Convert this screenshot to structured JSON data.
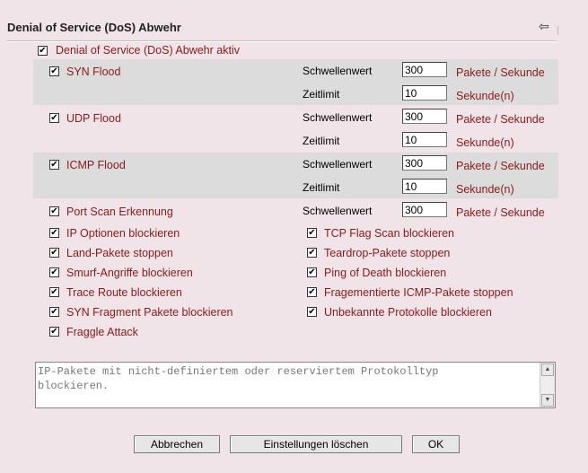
{
  "title": "Denial of Service (DoS) Abwehr",
  "dos_active": {
    "label": "Denial of Service (DoS) Abwehr aktiv",
    "checked": true
  },
  "syn_flood": {
    "label": "SYN Flood",
    "checked": true,
    "threshold_label": "Schwellenwert",
    "threshold": "300",
    "threshold_unit": "Pakete / Sekunde",
    "timeout_label": "Zeitlimit",
    "timeout": "10",
    "timeout_unit": "Sekunde(n)"
  },
  "udp_flood": {
    "label": "UDP Flood",
    "checked": true,
    "threshold_label": "Schwellenwert",
    "threshold": "300",
    "threshold_unit": "Pakete / Sekunde",
    "timeout_label": "Zeitlimit",
    "timeout": "10",
    "timeout_unit": "Sekunde(n)"
  },
  "icmp_flood": {
    "label": "ICMP Flood",
    "checked": true,
    "threshold_label": "Schwellenwert",
    "threshold": "300",
    "threshold_unit": "Pakete / Sekunde",
    "timeout_label": "Zeitlimit",
    "timeout": "10",
    "timeout_unit": "Sekunde(n)"
  },
  "port_scan": {
    "label": "Port Scan Erkennung",
    "checked": true,
    "threshold_label": "Schwellenwert",
    "threshold": "300",
    "threshold_unit": "Pakete / Sekunde"
  },
  "left_options": [
    {
      "label": "IP Optionen blockieren",
      "checked": true
    },
    {
      "label": "Land-Pakete stoppen",
      "checked": true
    },
    {
      "label": "Smurf-Angriffe blockieren",
      "checked": true
    },
    {
      "label": "Trace Route blockieren",
      "checked": true
    },
    {
      "label": "SYN Fragment Pakete blockieren",
      "checked": true
    },
    {
      "label": "Fraggle Attack",
      "checked": true
    }
  ],
  "right_options": [
    {
      "label": "TCP Flag Scan blockieren",
      "checked": true
    },
    {
      "label": "Teardrop-Pakete stoppen",
      "checked": true
    },
    {
      "label": "Ping of Death blockieren",
      "checked": true
    },
    {
      "label": "Fragementierte ICMP-Pakete stoppen",
      "checked": true
    },
    {
      "label": "Unbekannte Protokolle blockieren",
      "checked": true
    }
  ],
  "description": "IP-Pakete mit nicht-definiertem oder reserviertem Protokolltyp\nblockieren.",
  "buttons": {
    "cancel": "Abbrechen",
    "clear": "Einstellungen löschen",
    "ok": "OK"
  },
  "check_glyph": "✔",
  "back_glyph": "⇦"
}
